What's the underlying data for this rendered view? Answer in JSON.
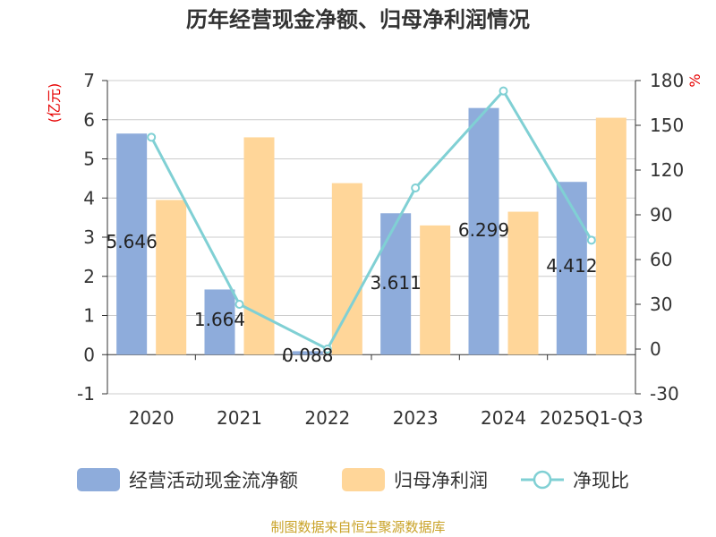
{
  "title": "历年经营现金净额、归母净利润情况",
  "source": "制图数据来自恒生聚源数据库",
  "units": {
    "left": "(亿元)",
    "right": "%"
  },
  "colors": {
    "cash": "#8eacdb",
    "profit": "#ffd699",
    "ratio": "#80d0d4",
    "unit": "#e60000",
    "source": "#c9a227"
  },
  "legend": [
    {
      "label": "经营活动现金流净额",
      "kind": "bar",
      "color": "#8eacdb"
    },
    {
      "label": "归母净利润",
      "kind": "bar",
      "color": "#ffd699"
    },
    {
      "label": "净现比",
      "kind": "line",
      "color": "#80d0d4"
    }
  ],
  "chart_data": {
    "type": "bar",
    "title": "历年经营现金净额、归母净利润情况",
    "categories": [
      "2020",
      "2021",
      "2022",
      "2023",
      "2024",
      "2025Q1-Q3"
    ],
    "series": [
      {
        "name": "经营活动现金流净额",
        "axis": "left",
        "type": "bar",
        "values": [
          5.646,
          1.664,
          0.088,
          3.611,
          6.299,
          4.412
        ],
        "data_labels": [
          "5.646",
          "1.664",
          "0.088",
          "3.611",
          "6.299",
          "4.412"
        ]
      },
      {
        "name": "归母净利润",
        "axis": "left",
        "type": "bar",
        "values": [
          3.95,
          5.55,
          4.38,
          3.3,
          3.65,
          6.05
        ]
      },
      {
        "name": "净现比",
        "axis": "right",
        "type": "line",
        "values": [
          142,
          30,
          0,
          108,
          173,
          73
        ]
      }
    ],
    "ylim_left": [
      -1,
      7
    ],
    "yticks_left": [
      "7",
      "6",
      "5",
      "4",
      "3",
      "2",
      "1",
      "0",
      "-1"
    ],
    "ylim_right": [
      -30,
      180
    ],
    "yticks_right": [
      "180",
      "150",
      "120",
      "90",
      "60",
      "30",
      "0",
      "-30"
    ],
    "ylabel_left": "(亿元)",
    "ylabel_right": "%",
    "grid": true,
    "legend_position": "bottom"
  }
}
